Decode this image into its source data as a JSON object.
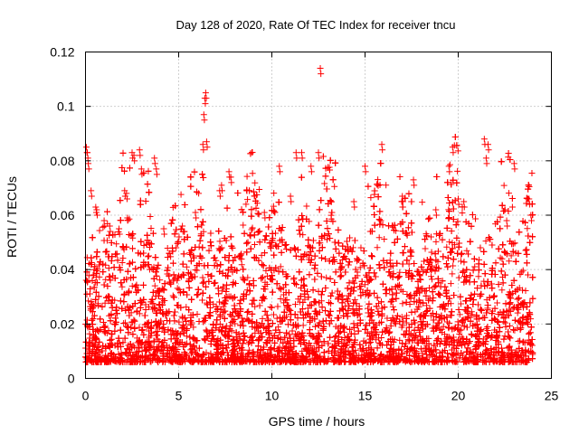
{
  "chart_data": {
    "type": "scatter",
    "title": "Day 128 of 2020, Rate Of TEC Index for receiver tncu",
    "xlabel": "GPS time / hours",
    "ylabel": "ROTI / TECUs",
    "xlim": [
      0,
      25
    ],
    "ylim": [
      0,
      0.12
    ],
    "xticks": [
      0,
      5,
      10,
      15,
      20,
      25
    ],
    "xtick_labels": [
      "0",
      "5",
      "10",
      "15",
      "20",
      "25"
    ],
    "yticks": [
      0,
      0.02,
      0.04,
      0.06,
      0.08,
      0.1,
      0.12
    ],
    "ytick_labels": [
      "0",
      "0.02",
      "0.04",
      "0.06",
      "0.08",
      "0.1",
      "0.12"
    ],
    "grid": true,
    "marker": "plus",
    "color": "#ff0000",
    "x_data_range": [
      0,
      24
    ],
    "series": [
      {
        "x": [
          0.05,
          0.1,
          0.15,
          0.3,
          0.55,
          0.6,
          1.0,
          1.3,
          1.8,
          2.1,
          2.2,
          2.5,
          2.6,
          2.9,
          3.0,
          3.7,
          3.8,
          4.2,
          5.2,
          5.9,
          6.3,
          6.35,
          6.4,
          6.45,
          6.5,
          7.2,
          7.3,
          7.7,
          7.8,
          9.6,
          10.4,
          11.0,
          11.3,
          11.6,
          12.1,
          12.5,
          12.6,
          14.4,
          15.0,
          15.9,
          17.0,
          17.6,
          18.8,
          19.5,
          19.7,
          20.0,
          20.3,
          21.4,
          21.5,
          21.6,
          22.6,
          23.0,
          23.8,
          23.9
        ],
        "y": [
          0.085,
          0.083,
          0.079,
          0.069,
          0.063,
          0.062,
          0.058,
          0.056,
          0.055,
          0.069,
          0.068,
          0.083,
          0.082,
          0.084,
          0.077,
          0.081,
          0.077,
          0.055,
          0.056,
          0.061,
          0.086,
          0.097,
          0.103,
          0.105,
          0.087,
          0.069,
          0.071,
          0.076,
          0.074,
          0.061,
          0.078,
          0.067,
          0.083,
          0.083,
          0.078,
          0.083,
          0.114,
          0.065,
          0.078,
          0.086,
          0.067,
          0.073,
          0.062,
          0.078,
          0.085,
          0.066,
          0.065,
          0.088,
          0.081,
          0.086,
          0.058,
          0.079,
          0.066,
          0.06
        ]
      }
    ]
  }
}
